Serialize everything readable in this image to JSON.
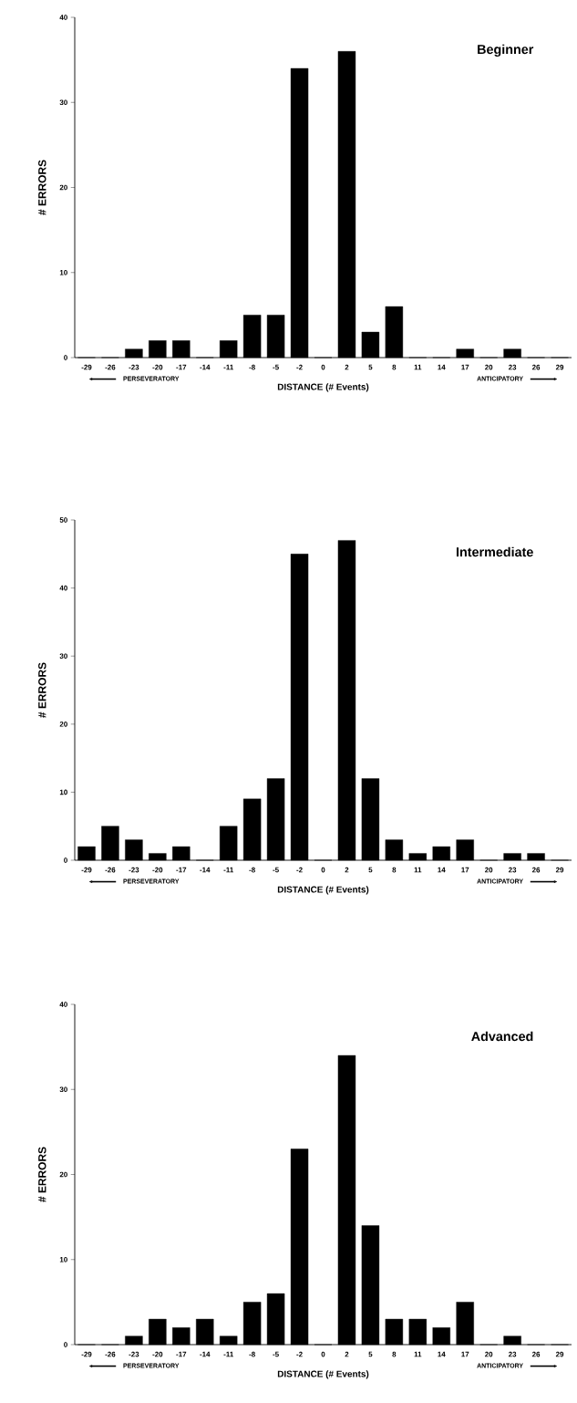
{
  "chart_data": [
    {
      "type": "bar",
      "title": "Beginner",
      "xlabel": "DISTANCE (# Events)",
      "ylabel": "# ERRORS",
      "annotations": [
        "PERSEVERATORY",
        "ANTICIPATORY"
      ],
      "categories": [
        "-29",
        "-26",
        "-23",
        "-20",
        "-17",
        "-14",
        "-11",
        "-8",
        "-5",
        "-2",
        "0",
        "2",
        "5",
        "8",
        "11",
        "14",
        "17",
        "20",
        "23",
        "26",
        "29"
      ],
      "values": [
        0,
        0,
        1,
        2,
        2,
        0,
        2,
        5,
        5,
        34,
        0,
        36,
        3,
        6,
        0,
        0,
        1,
        0,
        1,
        0,
        0
      ],
      "color": "#000000",
      "ylim": [
        0,
        40
      ],
      "yticks": [
        0,
        10,
        20,
        30,
        40
      ]
    },
    {
      "type": "bar",
      "title": "Intermediate",
      "xlabel": "DISTANCE (# Events)",
      "ylabel": "# ERRORS",
      "annotations": [
        "PERSEVERATORY",
        "ANTICIPATORY"
      ],
      "categories": [
        "-29",
        "-26",
        "-23",
        "-20",
        "-17",
        "-14",
        "-11",
        "-8",
        "-5",
        "-2",
        "0",
        "2",
        "5",
        "8",
        "11",
        "14",
        "17",
        "20",
        "23",
        "26",
        "29"
      ],
      "values": [
        2,
        5,
        3,
        1,
        2,
        0,
        5,
        9,
        12,
        45,
        0,
        47,
        12,
        3,
        1,
        2,
        3,
        0,
        1,
        1,
        0
      ],
      "color": "#000000",
      "ylim": [
        0,
        50
      ],
      "yticks": [
        0,
        10,
        20,
        30,
        40,
        50
      ]
    },
    {
      "type": "bar",
      "title": "Advanced",
      "xlabel": "DISTANCE (# Events)",
      "ylabel": "# ERRORS",
      "annotations": [
        "PERSEVERATORY",
        "ANTICIPATORY"
      ],
      "categories": [
        "-29",
        "-26",
        "-23",
        "-20",
        "-17",
        "-14",
        "-11",
        "-8",
        "-5",
        "-2",
        "0",
        "2",
        "5",
        "8",
        "11",
        "14",
        "17",
        "20",
        "23",
        "26",
        "29"
      ],
      "values": [
        0,
        0,
        1,
        3,
        2,
        3,
        1,
        5,
        6,
        23,
        0,
        34,
        14,
        3,
        3,
        2,
        5,
        0,
        1,
        0,
        0
      ],
      "color": "#000000",
      "ylim": [
        0,
        40
      ],
      "yticks": [
        0,
        10,
        20,
        30,
        40
      ]
    }
  ]
}
